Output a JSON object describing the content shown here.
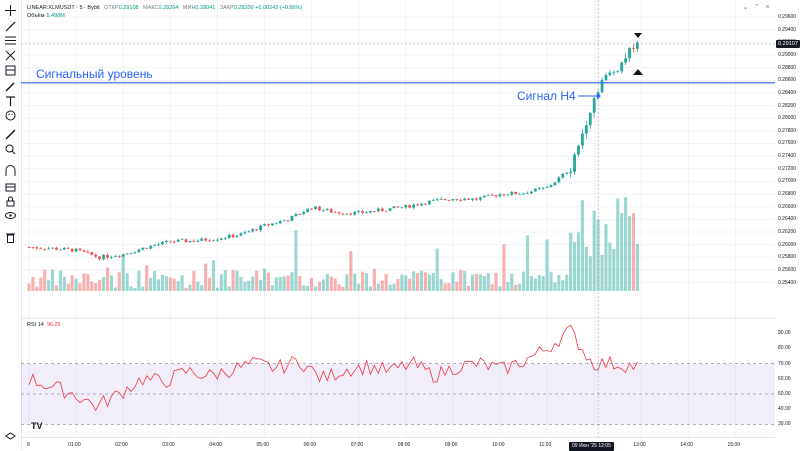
{
  "legend": {
    "symbol": "LINEAR:XLMUSDT · 5 · Bybit",
    "open_label": "ОТКР",
    "open_value": "0.28108",
    "high_label": "МАКС",
    "high_value": "0.28264",
    "low_label": "МИН",
    "low_value": "0.28041",
    "close_label": "ЗАКР",
    "close_value": "0.28200",
    "change": "+0.00242 (+0.86%)"
  },
  "volume": {
    "label": "Объём",
    "value": "5.498M"
  },
  "rsi": {
    "label": "RSI 14",
    "value": "96.25"
  },
  "annotations": {
    "signal_level": "Сигнальный уровень",
    "signal_h4": "Сигнал H4"
  },
  "current_price": "0.29107",
  "price_axis": [
    "0.29600",
    "0.29400",
    "0.29200",
    "0.29000",
    "0.28800",
    "0.28600",
    "0.28400",
    "0.28200",
    "0.28000",
    "0.27800",
    "0.27600",
    "0.27400",
    "0.27200",
    "0.27000",
    "0.26800",
    "0.26600",
    "0.26400",
    "0.26200",
    "0.26000",
    "0.25800",
    "0.25600",
    "0.25400"
  ],
  "rsi_axis": [
    "90.00",
    "80.00",
    "70.00",
    "60.00",
    "50.00",
    "40.00",
    "30.00"
  ],
  "time_axis": [
    "9",
    "01:00",
    "02:00",
    "03:00",
    "04:00",
    "05:00",
    "06:00",
    "07:00",
    "08:00",
    "09:00",
    "10:00",
    "11:00",
    "13:00",
    "14:00",
    "15:00"
  ],
  "crosshair_time": "09 Июн '25   12:05",
  "logo": "TV",
  "colors": {
    "up": "#26a69a",
    "down": "#ef5350",
    "level_line": "#2962ff",
    "rsi_line": "#f23645",
    "rsi_band": "#7e57c2"
  },
  "toolbar_icons": [
    "crosshair-icon",
    "trend-line-icon",
    "horizontal-lines-icon",
    "fib-icon",
    "brush-icon",
    "text-icon",
    "emoji-icon",
    "ruler-icon",
    "zoom-icon",
    "magnet-icon",
    "lock-drawing-icon",
    "lock-icon",
    "eye-icon",
    "trash-icon",
    "layers-icon"
  ],
  "chart_data": {
    "type": "candlestick",
    "title": "LINEAR:XLMUSDT · 5 · Bybit",
    "x_range": [
      "00:00",
      "15:40"
    ],
    "ylim": [
      0.2533,
      0.2968
    ],
    "signal_level": 0.2856,
    "candles_sampled": [
      {
        "t": "00:00",
        "c": 0.2596
      },
      {
        "t": "00:30",
        "c": 0.2594
      },
      {
        "t": "01:00",
        "c": 0.2591
      },
      {
        "t": "01:30",
        "c": 0.258
      },
      {
        "t": "02:00",
        "c": 0.2585
      },
      {
        "t": "02:30",
        "c": 0.2596
      },
      {
        "t": "03:00",
        "c": 0.2605
      },
      {
        "t": "03:30",
        "c": 0.2606
      },
      {
        "t": "04:00",
        "c": 0.261
      },
      {
        "t": "04:30",
        "c": 0.2616
      },
      {
        "t": "05:00",
        "c": 0.263
      },
      {
        "t": "05:30",
        "c": 0.264
      },
      {
        "t": "06:00",
        "c": 0.2659
      },
      {
        "t": "06:30",
        "c": 0.2651
      },
      {
        "t": "07:00",
        "c": 0.265
      },
      {
        "t": "07:30",
        "c": 0.2655
      },
      {
        "t": "08:00",
        "c": 0.266
      },
      {
        "t": "08:30",
        "c": 0.2668
      },
      {
        "t": "09:00",
        "c": 0.2673
      },
      {
        "t": "09:30",
        "c": 0.2672
      },
      {
        "t": "10:00",
        "c": 0.268
      },
      {
        "t": "10:30",
        "c": 0.2682
      },
      {
        "t": "11:00",
        "c": 0.269
      },
      {
        "t": "11:30",
        "c": 0.272
      },
      {
        "t": "12:00",
        "c": 0.2832
      },
      {
        "t": "12:10",
        "c": 0.286
      },
      {
        "t": "12:30",
        "c": 0.288
      },
      {
        "t": "12:50",
        "c": 0.2915
      }
    ],
    "rsi_sampled": [
      60,
      55,
      50,
      42,
      50,
      60,
      58,
      65,
      62,
      66,
      70,
      67,
      72,
      60,
      66,
      68,
      65,
      70,
      62,
      68,
      70,
      66,
      72,
      80,
      92,
      70,
      70,
      68
    ],
    "rsi_levels": {
      "upper": 70,
      "middle": 50,
      "lower": 30
    }
  }
}
